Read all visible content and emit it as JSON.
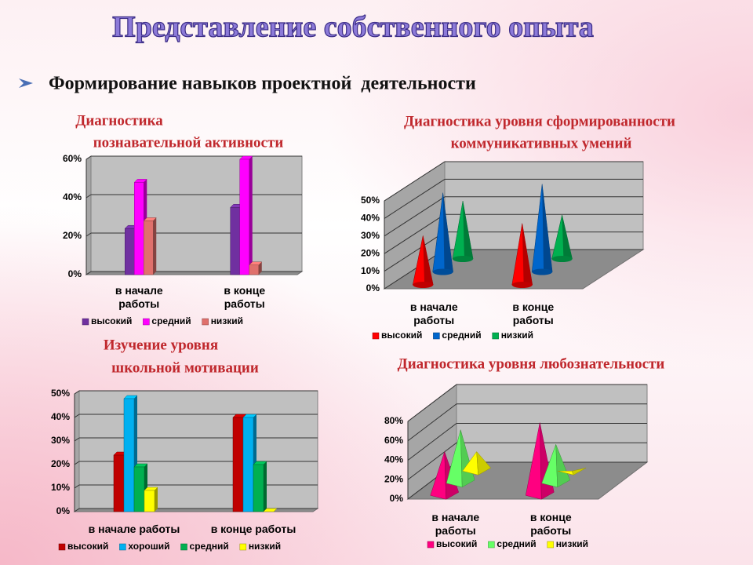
{
  "title": "Представление собственного опыта",
  "subtitle": "Формирование навыков проектной  деятельности",
  "chart_data": [
    {
      "type": "bar",
      "title": [
        "Диагностика",
        "познавательной активности"
      ],
      "categories": [
        "в начале работы",
        "в конце работы"
      ],
      "series": [
        {
          "name": "высокий",
          "color": "#7030a0",
          "values": [
            24,
            35
          ]
        },
        {
          "name": "средний",
          "color": "#ff00ff",
          "values": [
            48,
            60
          ]
        },
        {
          "name": "низкий",
          "color": "#e0706c",
          "values": [
            28,
            5
          ]
        }
      ],
      "ylim": [
        0,
        60
      ],
      "yticks": [
        {
          "value": 0,
          "label": "0%"
        },
        {
          "value": 20,
          "label": "20%"
        },
        {
          "value": 40,
          "label": "40%"
        },
        {
          "value": 60,
          "label": "60%"
        }
      ],
      "grid": true
    },
    {
      "type": "cone",
      "title": [
        "Диагностика уровня сформированности",
        "коммуникативных умений"
      ],
      "categories": [
        "в начале работы",
        "в конце работы"
      ],
      "series": [
        {
          "name": "высокий",
          "color": "#ff0000",
          "values": [
            28,
            35
          ]
        },
        {
          "name": "средний",
          "color": "#0066cc",
          "values": [
            45,
            50
          ]
        },
        {
          "name": "низкий",
          "color": "#00b050",
          "values": [
            33,
            25
          ]
        }
      ],
      "ylim": [
        0,
        50
      ],
      "yticks": [
        {
          "value": 0,
          "label": "0%"
        },
        {
          "value": 10,
          "label": "10%"
        },
        {
          "value": 20,
          "label": "20%"
        },
        {
          "value": 30,
          "label": "30%"
        },
        {
          "value": 40,
          "label": "40%"
        },
        {
          "value": 50,
          "label": "50%"
        }
      ],
      "grid": true
    },
    {
      "type": "bar",
      "title": [
        "Изучение уровня",
        "школьной мотивации"
      ],
      "categories": [
        "в начале работы",
        "в конце работы"
      ],
      "series": [
        {
          "name": "высокий",
          "color": "#c00000",
          "values": [
            24,
            40
          ]
        },
        {
          "name": "хороший",
          "color": "#00b0f0",
          "values": [
            48,
            40
          ]
        },
        {
          "name": "средний",
          "color": "#00b050",
          "values": [
            19,
            20
          ]
        },
        {
          "name": "низкий",
          "color": "#ffff00",
          "values": [
            9,
            0
          ]
        }
      ],
      "ylim": [
        0,
        50
      ],
      "yticks": [
        {
          "value": 0,
          "label": "0%"
        },
        {
          "value": 10,
          "label": "10%"
        },
        {
          "value": 20,
          "label": "20%"
        },
        {
          "value": 30,
          "label": "30%"
        },
        {
          "value": 40,
          "label": "40%"
        },
        {
          "value": 50,
          "label": "50%"
        }
      ],
      "grid": true
    },
    {
      "type": "pyramid",
      "title": [
        "Диагностика уровня любознательности"
      ],
      "categories": [
        "в начале работы",
        "в конце работы"
      ],
      "series": [
        {
          "name": "высокий",
          "color": "#ff0080",
          "values": [
            45,
            75
          ]
        },
        {
          "name": "средний",
          "color": "#66ff66",
          "values": [
            55,
            40
          ]
        },
        {
          "name": "низкий",
          "color": "#ffff00",
          "values": [
            20,
            0
          ]
        }
      ],
      "ylim": [
        0,
        80
      ],
      "yticks": [
        {
          "value": 0,
          "label": "0%"
        },
        {
          "value": 20,
          "label": "20%"
        },
        {
          "value": 40,
          "label": "40%"
        },
        {
          "value": 60,
          "label": "60%"
        },
        {
          "value": 80,
          "label": "80%"
        }
      ],
      "grid": true
    }
  ]
}
